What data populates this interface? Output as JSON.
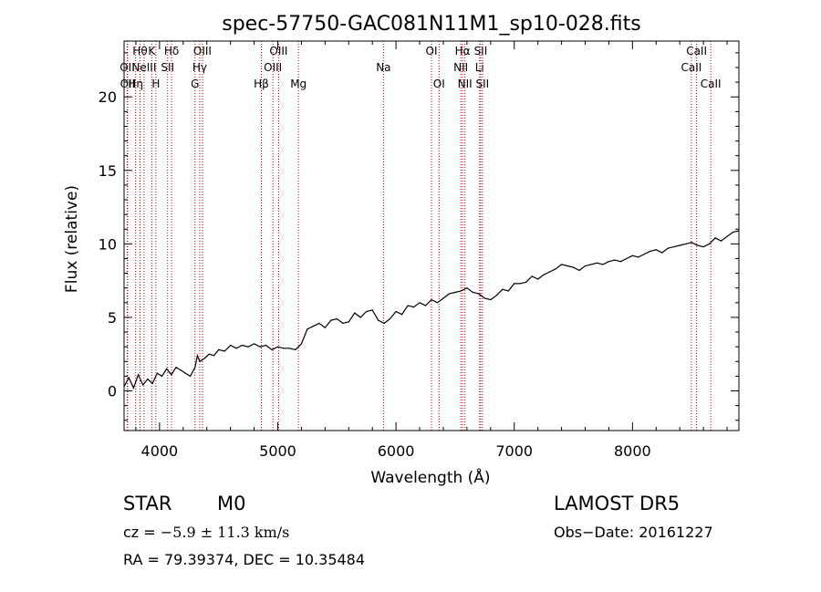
{
  "chart_data": {
    "type": "line",
    "title": "spec-57750-GAC081N11M1_sp10-028.fits",
    "xlabel": "Wavelength (Å)",
    "ylabel": "Flux (relative)",
    "xlim": [
      3700,
      8900
    ],
    "ylim": [
      -2.7,
      23.8
    ],
    "xticks": [
      4000,
      5000,
      6000,
      7000,
      8000
    ],
    "xtick_labels": [
      "4000",
      "5000",
      "6000",
      "7000",
      "8000"
    ],
    "yticks": [
      0,
      5,
      10,
      15,
      20
    ],
    "ytick_labels": [
      "0",
      "5",
      "10",
      "15",
      "20"
    ],
    "grid": false,
    "legend": "none",
    "line_color": "#000000",
    "marker_line_color": "#c00000",
    "series": [
      {
        "x": [
          3700,
          3740,
          3780,
          3820,
          3860,
          3900,
          3940,
          3980,
          4020,
          4060,
          4100,
          4140,
          4180,
          4220,
          4260,
          4300,
          4320,
          4340,
          4380,
          4420,
          4460,
          4500,
          4550,
          4600,
          4650,
          4700,
          4750,
          4800,
          4850,
          4900,
          4950,
          5000,
          5050,
          5100,
          5150,
          5200,
          5250,
          5300,
          5350,
          5400,
          5450,
          5500,
          5550,
          5600,
          5650,
          5700,
          5750,
          5800,
          5850,
          5900,
          5950,
          6000,
          6050,
          6100,
          6150,
          6200,
          6250,
          6300,
          6350,
          6400,
          6450,
          6500,
          6550,
          6600,
          6650,
          6700,
          6750,
          6800,
          6850,
          6900,
          6950,
          7000,
          7050,
          7100,
          7150,
          7200,
          7250,
          7300,
          7350,
          7400,
          7450,
          7500,
          7550,
          7600,
          7650,
          7700,
          7750,
          7800,
          7850,
          7900,
          7950,
          8000,
          8050,
          8100,
          8150,
          8200,
          8250,
          8300,
          8350,
          8400,
          8450,
          8500,
          8550,
          8600,
          8650,
          8700,
          8750,
          8800,
          8850,
          8900
        ],
        "y": [
          0.3,
          0.9,
          0.2,
          1.1,
          0.4,
          0.8,
          0.5,
          1.2,
          1.0,
          1.5,
          1.1,
          1.6,
          1.4,
          1.2,
          1.0,
          1.6,
          2.4,
          2.0,
          2.2,
          2.5,
          2.4,
          2.8,
          2.7,
          3.1,
          2.9,
          3.1,
          3.0,
          3.2,
          3.0,
          3.1,
          2.8,
          3.0,
          2.9,
          2.9,
          2.8,
          3.2,
          4.2,
          4.4,
          4.6,
          4.3,
          4.8,
          4.9,
          4.6,
          4.7,
          5.3,
          5.0,
          5.4,
          5.5,
          4.8,
          4.6,
          4.9,
          5.4,
          5.2,
          5.8,
          5.7,
          6.0,
          5.8,
          6.2,
          6.0,
          6.3,
          6.6,
          6.7,
          6.8,
          7.0,
          6.7,
          6.6,
          6.3,
          6.2,
          6.5,
          6.9,
          6.8,
          7.3,
          7.3,
          7.4,
          7.8,
          7.6,
          7.9,
          8.1,
          8.3,
          8.6,
          8.5,
          8.4,
          8.2,
          8.5,
          8.6,
          8.7,
          8.6,
          8.8,
          8.9,
          8.8,
          9.0,
          9.2,
          9.1,
          9.3,
          9.5,
          9.6,
          9.4,
          9.7,
          9.8,
          9.9,
          10.0,
          10.1,
          9.9,
          9.8,
          10.0,
          10.4,
          10.2,
          10.5,
          10.8,
          10.9
        ]
      }
    ],
    "line_markers": [
      {
        "x": 3727,
        "label": "OII",
        "row": 2
      },
      {
        "x": 3730,
        "label": "OII",
        "row": 3
      },
      {
        "x": 3798,
        "label": "Hη",
        "row": 3
      },
      {
        "x": 3835,
        "label": "Hθ",
        "row": 1
      },
      {
        "x": 3869,
        "label": "NeIII",
        "row": 2
      },
      {
        "x": 3934,
        "label": "K",
        "row": 1
      },
      {
        "x": 3969,
        "label": "H",
        "row": 3
      },
      {
        "x": 4068,
        "label": "SII",
        "row": 2
      },
      {
        "x": 4102,
        "label": "Hδ",
        "row": 1
      },
      {
        "x": 4300,
        "label": "G",
        "row": 3
      },
      {
        "x": 4340,
        "label": "Hγ",
        "row": 2
      },
      {
        "x": 4363,
        "label": "OIII",
        "row": 1
      },
      {
        "x": 4861,
        "label": "Hβ",
        "row": 3
      },
      {
        "x": 4959,
        "label": "OIII",
        "row": 2
      },
      {
        "x": 5007,
        "label": "OIII",
        "row": 1
      },
      {
        "x": 5175,
        "label": "Mg",
        "row": 3
      },
      {
        "x": 5894,
        "label": "Na",
        "row": 2
      },
      {
        "x": 6300,
        "label": "OI",
        "row": 1
      },
      {
        "x": 6364,
        "label": "OI",
        "row": 3
      },
      {
        "x": 6548,
        "label": "NII",
        "row": 2
      },
      {
        "x": 6563,
        "label": "Hα",
        "row": 1
      },
      {
        "x": 6583,
        "label": "NII",
        "row": 3
      },
      {
        "x": 6707,
        "label": "Li",
        "row": 2
      },
      {
        "x": 6716,
        "label": "SII",
        "row": 1
      },
      {
        "x": 6731,
        "label": "SII",
        "row": 3
      },
      {
        "x": 8498,
        "label": "CaII",
        "row": 2
      },
      {
        "x": 8542,
        "label": "CaII",
        "row": 1
      },
      {
        "x": 8662,
        "label": "CaII",
        "row": 3
      }
    ]
  },
  "info": {
    "class_label": "STAR",
    "subclass": "M0",
    "survey": "LAMOST DR5",
    "cz_prefix": "cz = ",
    "cz_value": "−5.9 ± 11.3 km/s",
    "obs_date": "Obs−Date: 20161227",
    "coords": "RA =  79.39374, DEC =  10.35484"
  }
}
